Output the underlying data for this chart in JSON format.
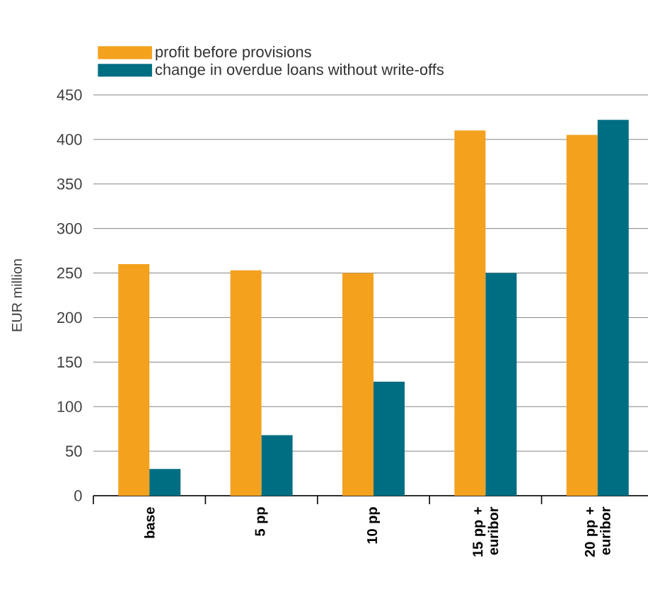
{
  "chart_data": {
    "type": "bar",
    "ylabel": "EUR million",
    "categories": [
      "base",
      "5 pp",
      "10 pp",
      "15 pp + euribor",
      "20 pp + euribor"
    ],
    "series": [
      {
        "name": "profit before provisions",
        "color": "#f4a11e",
        "values": [
          260,
          253,
          250,
          410,
          405
        ]
      },
      {
        "name": "change in overdue loans without write-offs",
        "color": "#006e82",
        "values": [
          30,
          68,
          128,
          250,
          422
        ]
      }
    ],
    "ylim": [
      0,
      450
    ],
    "yticks": [
      0,
      50,
      100,
      150,
      200,
      250,
      300,
      350,
      400,
      450
    ],
    "grid": "y",
    "legend": "top left"
  }
}
